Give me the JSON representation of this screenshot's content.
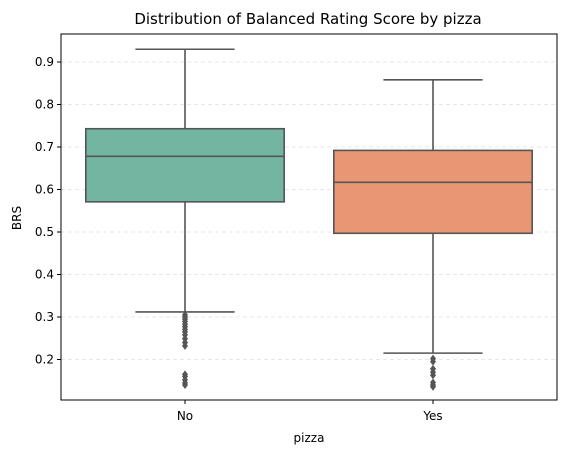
{
  "chart_data": {
    "type": "box",
    "title": "Distribution of Balanced Rating Score by pizza",
    "xlabel": "pizza",
    "ylabel": "BRS",
    "ylim": [
      0.1,
      0.96
    ],
    "yticks": [
      0.2,
      0.3,
      0.4,
      0.5,
      0.6,
      0.7,
      0.8,
      0.9
    ],
    "ytick_labels": [
      "0.2",
      "0.3",
      "0.4",
      "0.5",
      "0.6",
      "0.7",
      "0.8",
      "0.9"
    ],
    "grid": "horizontal dashed",
    "categories": [
      "No",
      "Yes"
    ],
    "boxes": [
      {
        "category": "No",
        "color": "#72b6a1",
        "whisker_low": 0.312,
        "q1": 0.571,
        "median": 0.678,
        "q3": 0.743,
        "whisker_high": 0.93,
        "outliers": [
          0.305,
          0.3,
          0.295,
          0.289,
          0.283,
          0.277,
          0.271,
          0.265,
          0.258,
          0.249,
          0.24,
          0.232,
          0.165,
          0.16,
          0.152,
          0.145,
          0.14
        ]
      },
      {
        "category": "Yes",
        "color": "#e99675",
        "whisker_low": 0.215,
        "q1": 0.497,
        "median": 0.617,
        "q3": 0.692,
        "whisker_high": 0.858,
        "outliers": [
          0.202,
          0.195,
          0.178,
          0.17,
          0.163,
          0.146,
          0.14,
          0.136
        ]
      }
    ],
    "line_color": "#555555"
  }
}
